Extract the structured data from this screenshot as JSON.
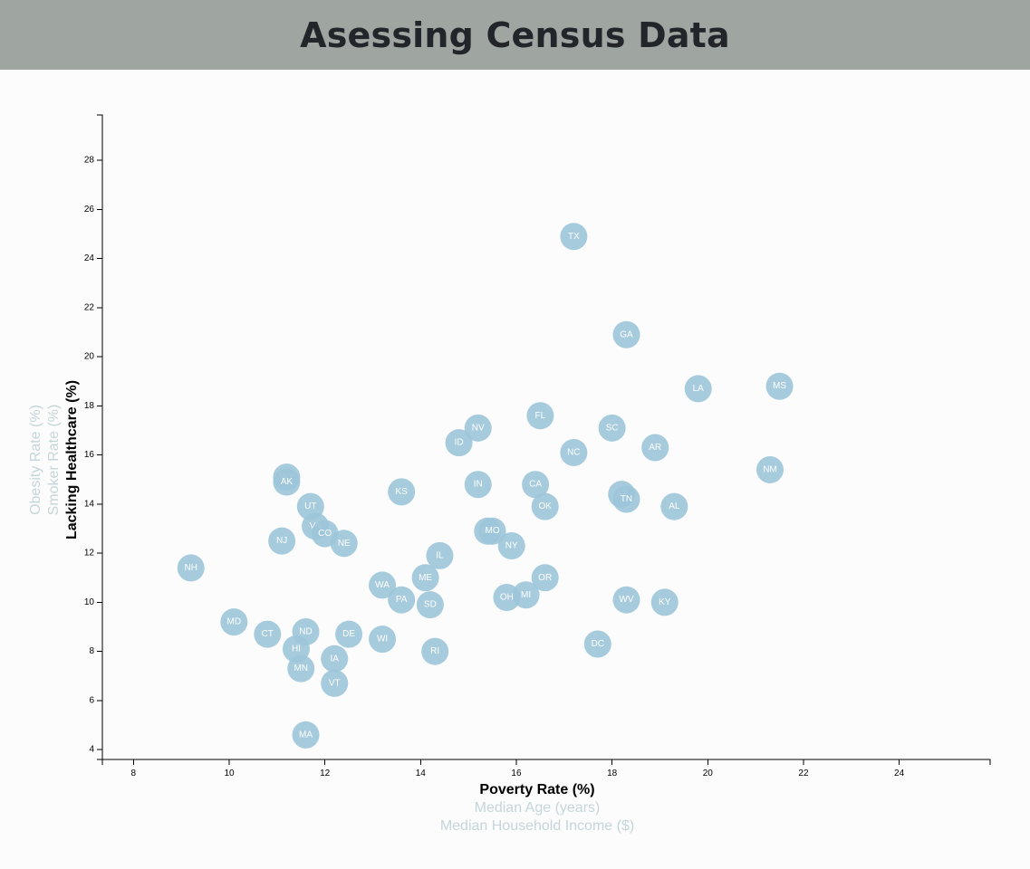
{
  "header": {
    "title": "Asessing Census Data"
  },
  "colors": {
    "header_bg": "#9fa6a1",
    "marker": "#9cc5d9",
    "inactive_label": "#c5d5d9"
  },
  "chart_data": {
    "type": "scatter",
    "title": "",
    "xlabel": "Poverty Rate (%)",
    "ylabel": "Lacking Healthcare (%)",
    "x_axis_options": [
      "Poverty Rate (%)",
      "Median Age (years)",
      "Median Household Income ($)"
    ],
    "y_axis_options": [
      "Lacking Healthcare (%)",
      "Smoker Rate (%)",
      "Obesity Rate (%)"
    ],
    "active_x": "Poverty Rate (%)",
    "active_y": "Lacking Healthcare (%)",
    "xlim": [
      7.35,
      25.9
    ],
    "ylim": [
      3.6,
      29.85
    ],
    "x_ticks": [
      8,
      10,
      12,
      14,
      16,
      18,
      20,
      22,
      24
    ],
    "y_ticks": [
      4,
      6,
      8,
      10,
      12,
      14,
      16,
      18,
      20,
      22,
      24,
      26,
      28
    ],
    "grid": false,
    "points": [
      {
        "label": "TX",
        "x": 17.2,
        "y": 24.9
      },
      {
        "label": "GA",
        "x": 18.3,
        "y": 20.9
      },
      {
        "label": "LA",
        "x": 19.8,
        "y": 18.7
      },
      {
        "label": "MS",
        "x": 21.5,
        "y": 18.8
      },
      {
        "label": "FL",
        "x": 16.5,
        "y": 17.6
      },
      {
        "label": "NV",
        "x": 15.2,
        "y": 17.1
      },
      {
        "label": "SC",
        "x": 18.0,
        "y": 17.1
      },
      {
        "label": "ID",
        "x": 14.8,
        "y": 16.5
      },
      {
        "label": "AR",
        "x": 18.9,
        "y": 16.3
      },
      {
        "label": "NC",
        "x": 17.2,
        "y": 16.1
      },
      {
        "label": "NM",
        "x": 21.3,
        "y": 15.4
      },
      {
        "label": "WY",
        "x": 11.2,
        "y": 15.1
      },
      {
        "label": "AK",
        "x": 11.2,
        "y": 14.9
      },
      {
        "label": "IN",
        "x": 15.2,
        "y": 14.8
      },
      {
        "label": "CA",
        "x": 16.4,
        "y": 14.8
      },
      {
        "label": "KS",
        "x": 13.6,
        "y": 14.5
      },
      {
        "label": "AZ",
        "x": 18.2,
        "y": 14.4
      },
      {
        "label": "TN",
        "x": 18.3,
        "y": 14.2
      },
      {
        "label": "UT",
        "x": 11.7,
        "y": 13.9
      },
      {
        "label": "OK",
        "x": 16.6,
        "y": 13.9
      },
      {
        "label": "AL",
        "x": 19.3,
        "y": 13.9
      },
      {
        "label": "VA",
        "x": 11.8,
        "y": 13.1
      },
      {
        "label": "CO",
        "x": 12.0,
        "y": 12.8
      },
      {
        "label": "MT",
        "x": 15.4,
        "y": 12.9
      },
      {
        "label": "MO",
        "x": 15.5,
        "y": 12.9
      },
      {
        "label": "NJ",
        "x": 11.1,
        "y": 12.5
      },
      {
        "label": "NE",
        "x": 12.4,
        "y": 12.4
      },
      {
        "label": "NY",
        "x": 15.9,
        "y": 12.3
      },
      {
        "label": "IL",
        "x": 14.4,
        "y": 11.9
      },
      {
        "label": "NH",
        "x": 9.2,
        "y": 11.4
      },
      {
        "label": "ME",
        "x": 14.1,
        "y": 11.0
      },
      {
        "label": "OR",
        "x": 16.6,
        "y": 11.0
      },
      {
        "label": "WA",
        "x": 13.2,
        "y": 10.7
      },
      {
        "label": "MI",
        "x": 16.2,
        "y": 10.3
      },
      {
        "label": "OH",
        "x": 15.8,
        "y": 10.2
      },
      {
        "label": "PA",
        "x": 13.6,
        "y": 10.1
      },
      {
        "label": "WV",
        "x": 18.3,
        "y": 10.1
      },
      {
        "label": "KY",
        "x": 19.1,
        "y": 10.0
      },
      {
        "label": "SD",
        "x": 14.2,
        "y": 9.9
      },
      {
        "label": "MD",
        "x": 10.1,
        "y": 9.2
      },
      {
        "label": "ND",
        "x": 11.6,
        "y": 8.8
      },
      {
        "label": "CT",
        "x": 10.8,
        "y": 8.7
      },
      {
        "label": "DE",
        "x": 12.5,
        "y": 8.7
      },
      {
        "label": "WI",
        "x": 13.2,
        "y": 8.5
      },
      {
        "label": "DC",
        "x": 17.7,
        "y": 8.3
      },
      {
        "label": "HI",
        "x": 11.4,
        "y": 8.1
      },
      {
        "label": "RI",
        "x": 14.3,
        "y": 8.0
      },
      {
        "label": "IA",
        "x": 12.2,
        "y": 7.7
      },
      {
        "label": "MN",
        "x": 11.5,
        "y": 7.3
      },
      {
        "label": "VT",
        "x": 12.2,
        "y": 6.7
      },
      {
        "label": "MA",
        "x": 11.6,
        "y": 4.6
      }
    ]
  }
}
